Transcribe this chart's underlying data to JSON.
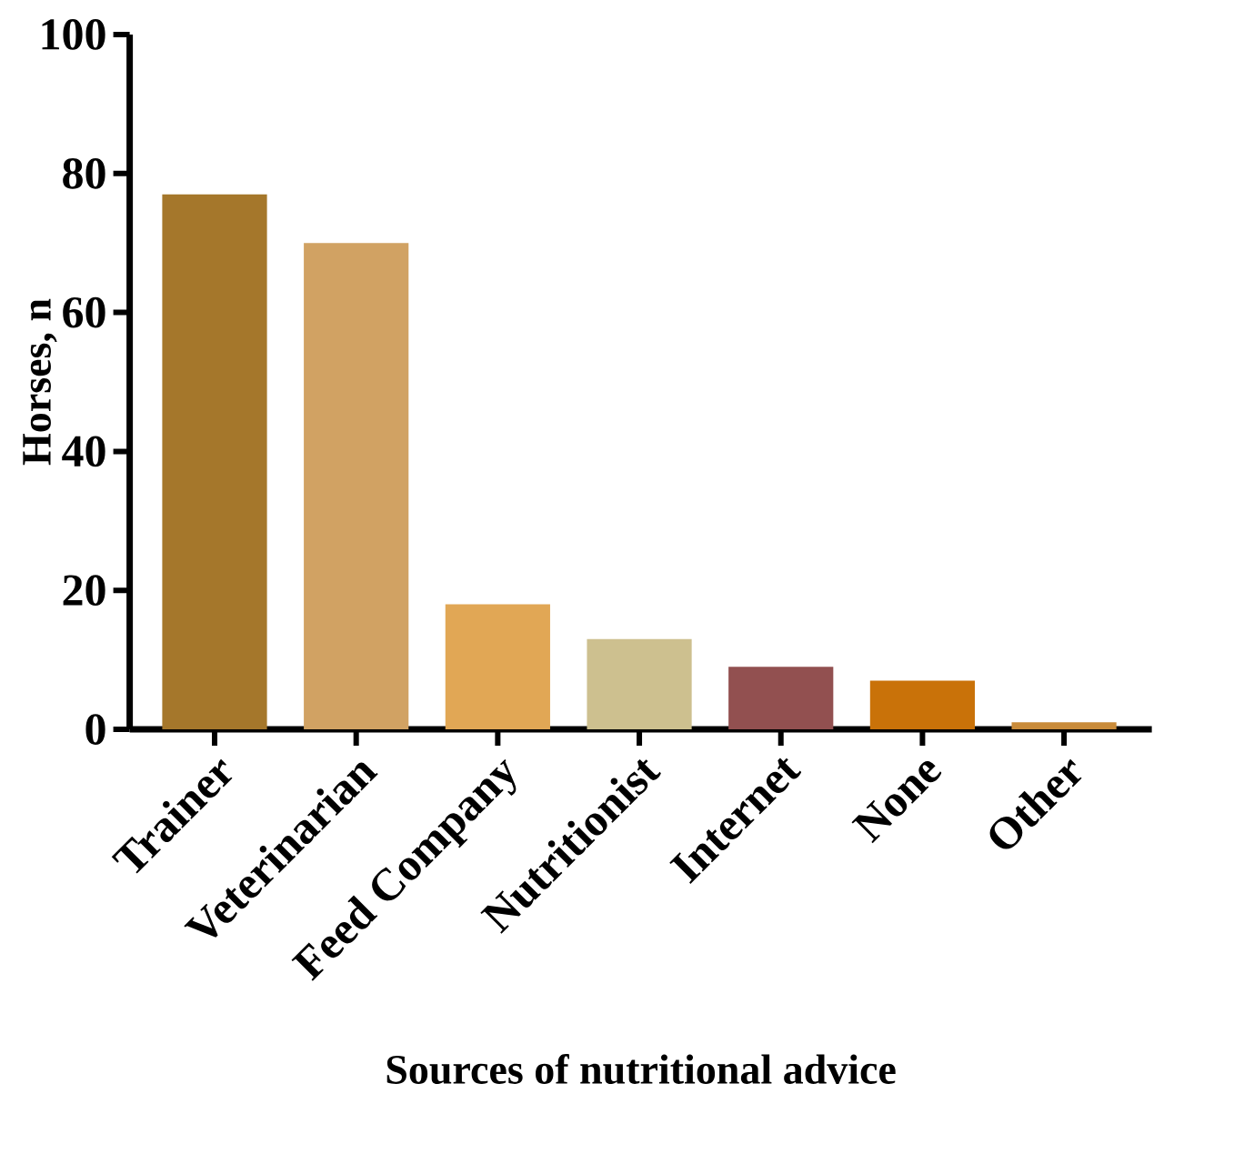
{
  "chart_data": {
    "type": "bar",
    "xlabel": "Sources of nutritional advice",
    "ylabel": "Horses, n",
    "categories": [
      "Trainer",
      "Veterinarian",
      "Feed Company",
      "Nutritionist",
      "Internet",
      "None",
      "Other"
    ],
    "values": [
      77,
      70,
      18,
      13,
      9,
      7,
      1
    ],
    "colors": [
      "#a5772b",
      "#d1a263",
      "#e1a755",
      "#cdc08f",
      "#925050",
      "#c97209",
      "#c98b3a"
    ],
    "ylim": [
      0,
      100
    ],
    "yticks": [
      0,
      20,
      40,
      60,
      80,
      100
    ],
    "grid": false
  }
}
